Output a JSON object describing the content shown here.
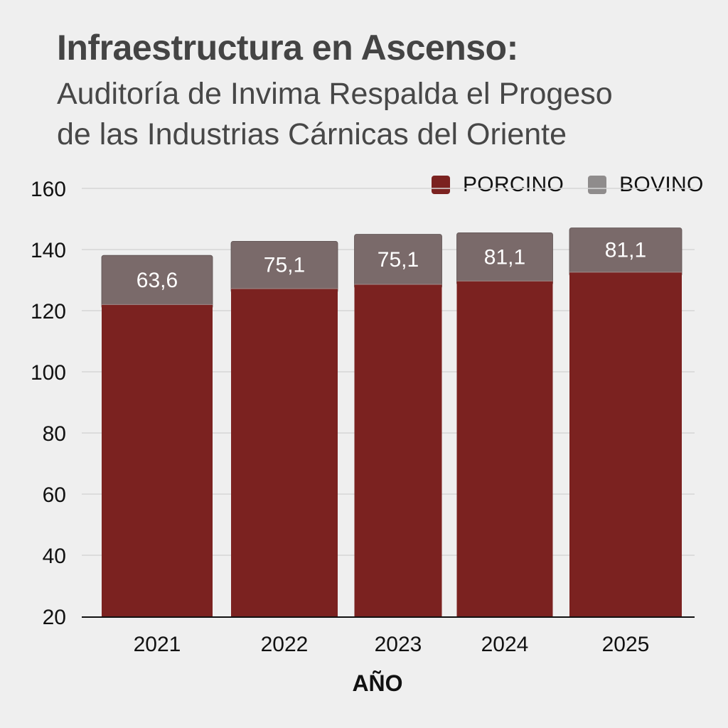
{
  "header": {
    "title": "Infraestructura en Ascenso:",
    "subtitle_lines": [
      "Auditoría de Invima Respalda el Progeso",
      "de las Industrias Cárnicas del Oriente"
    ]
  },
  "chart_data": {
    "type": "bar",
    "stacked": true,
    "title": "Infraestructura en Ascenso:",
    "subtitle": "Auditoría de Invima Respalda el Progeso de las Industrias Cárnicas del Oriente",
    "xlabel": "AÑO",
    "ylabel": "",
    "categories": [
      "2021",
      "2022",
      "2023",
      "2024",
      "2025"
    ],
    "ylim": [
      20,
      160
    ],
    "yticks": [
      20,
      40,
      60,
      80,
      100,
      120,
      140,
      160
    ],
    "grid": true,
    "legend_position": "top-right",
    "series": [
      {
        "name": "PORCINO",
        "color": "#7b2220",
        "values": [
          122,
          127.2,
          128.6,
          129.7,
          132.6
        ]
      },
      {
        "name": "BOVINO",
        "color": "#7a6a6a",
        "values": [
          16.1,
          15.5,
          16.4,
          15.8,
          14.5
        ],
        "data_labels": [
          "63,6",
          "75,1",
          "75,1",
          "81,1",
          "81,1"
        ]
      }
    ]
  }
}
